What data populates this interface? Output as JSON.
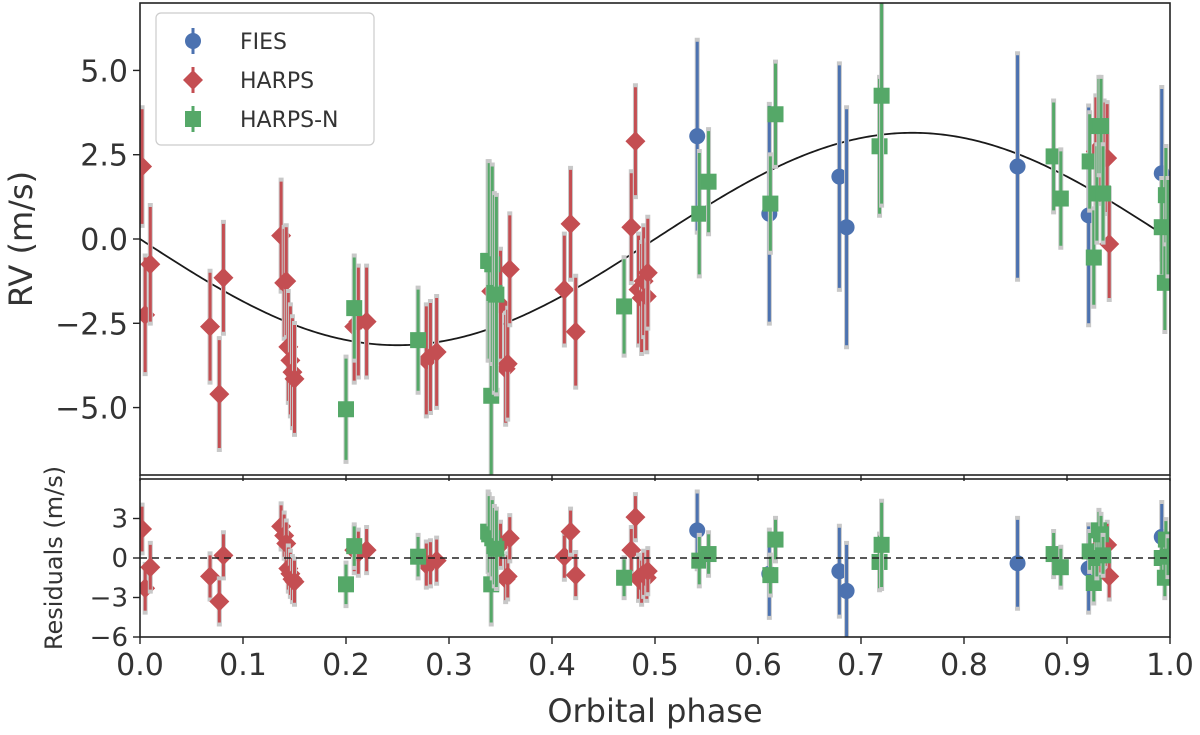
{
  "chart_data": {
    "type": "scatter",
    "xlabel": "Orbital phase",
    "xlim": [
      0.0,
      1.0
    ],
    "x_ticks": [
      "0.0",
      "0.1",
      "0.2",
      "0.3",
      "0.4",
      "0.5",
      "0.6",
      "0.7",
      "0.8",
      "0.9",
      "1.0"
    ],
    "legend_position": "top-left",
    "colors": {
      "FIES": "#4c72b0",
      "HARPS": "#c44e52",
      "HARPS-N": "#55a868",
      "errorbar_gray": "#c8c8c8",
      "model": "#1a1a1a"
    },
    "panels": [
      {
        "name": "rv",
        "ylabel": "RV (m/s)",
        "ylim": [
          -7.0,
          7.0
        ],
        "y_ticks": [
          "−5.0",
          "−2.5",
          "0.0",
          "2.5",
          "5.0"
        ],
        "model": {
          "type": "sine",
          "amplitude": 3.15,
          "phase_of_minimum": 0.25,
          "label": ""
        }
      },
      {
        "name": "residuals",
        "ylabel": "Residuals (m/s)",
        "ylim": [
          -6.0,
          6.0
        ],
        "y_ticks": [
          "−6",
          "−3",
          "0",
          "3"
        ],
        "zero_line": "dashed"
      }
    ],
    "series": [
      {
        "name": "FIES",
        "marker": "circle",
        "x": [
          0.541,
          0.611,
          0.679,
          0.686,
          0.852,
          0.921,
          0.992
        ],
        "y": [
          3.05,
          0.75,
          1.85,
          0.35,
          2.15,
          0.7,
          1.95
        ],
        "yerr": [
          2.8,
          3.2,
          3.3,
          3.5,
          3.3,
          3.2,
          2.5
        ],
        "resid": [
          2.1,
          -1.2,
          -1.0,
          -2.5,
          -0.4,
          -0.8,
          1.6
        ]
      },
      {
        "name": "HARPS",
        "marker": "diamond",
        "x": [
          0.002,
          0.005,
          0.01,
          0.068,
          0.077,
          0.081,
          0.137,
          0.14,
          0.142,
          0.144,
          0.146,
          0.148,
          0.15,
          0.208,
          0.212,
          0.22,
          0.278,
          0.282,
          0.288,
          0.341,
          0.35,
          0.355,
          0.357,
          0.359,
          0.412,
          0.418,
          0.423,
          0.477,
          0.481,
          0.484,
          0.487,
          0.489,
          0.492,
          0.493,
          0.928,
          0.931,
          0.936,
          0.939,
          0.941
        ],
        "y": [
          2.15,
          -2.25,
          -0.75,
          -2.6,
          -4.6,
          -1.15,
          0.1,
          -1.3,
          -1.25,
          -3.2,
          -3.6,
          -3.95,
          -4.15,
          -2.6,
          -2.45,
          -2.45,
          -3.6,
          -3.5,
          -3.35,
          -1.55,
          -1.95,
          -3.85,
          -3.7,
          -0.9,
          -1.5,
          0.45,
          -2.75,
          0.35,
          2.9,
          -1.5,
          -1.75,
          -1.25,
          -1.7,
          -1.0,
          2.6,
          2.7,
          2.45,
          2.4,
          -0.15
        ],
        "yerr": [
          1.7,
          1.7,
          1.7,
          1.6,
          1.6,
          1.6,
          1.6,
          1.6,
          1.6,
          1.6,
          1.6,
          1.6,
          1.6,
          1.6,
          1.6,
          1.6,
          1.6,
          1.6,
          1.6,
          1.6,
          1.6,
          1.6,
          1.6,
          1.6,
          1.6,
          1.6,
          1.6,
          1.6,
          1.6,
          1.6,
          1.6,
          1.6,
          1.6,
          1.6,
          1.6,
          1.6,
          1.6,
          1.6,
          1.6
        ],
        "resid": [
          2.2,
          -2.3,
          -0.7,
          -1.4,
          -3.3,
          0.2,
          2.4,
          1.7,
          1.1,
          -0.8,
          -1.2,
          -1.6,
          -1.8,
          0.6,
          0.4,
          0.6,
          -0.5,
          -0.4,
          -0.2,
          1.5,
          1.0,
          -1.6,
          -1.4,
          1.5,
          0.1,
          2.0,
          -1.3,
          0.6,
          3.1,
          -1.5,
          -1.8,
          -1.2,
          -1.5,
          -1.0,
          0.6,
          0.5,
          0.8,
          1.0,
          -1.4
        ]
      },
      {
        "name": "HARPS-N",
        "marker": "square",
        "x": [
          0.2,
          0.208,
          0.27,
          0.338,
          0.339,
          0.341,
          0.342,
          0.344,
          0.346,
          0.47,
          0.543,
          0.552,
          0.612,
          0.617,
          0.718,
          0.72,
          0.887,
          0.894,
          0.922,
          0.926,
          0.929,
          0.931,
          0.933,
          0.935,
          0.992,
          0.995,
          0.996,
          0.998
        ],
        "y": [
          -5.05,
          -2.05,
          -3.0,
          -0.65,
          -0.65,
          -4.65,
          -0.75,
          -1.6,
          -1.65,
          -2.0,
          0.75,
          1.7,
          1.05,
          3.7,
          2.75,
          4.25,
          2.45,
          1.2,
          2.3,
          -0.55,
          1.35,
          3.35,
          3.35,
          1.35,
          0.35,
          -1.3,
          1.3,
          0.35
        ],
        "yerr": [
          1.5,
          1.5,
          1.5,
          2.9,
          2.9,
          2.9,
          2.9,
          2.9,
          2.9,
          1.4,
          1.8,
          1.5,
          1.4,
          1.5,
          2.0,
          3.2,
          1.6,
          1.4,
          1.4,
          1.4,
          1.4,
          1.4,
          1.4,
          1.4,
          1.4,
          1.4,
          1.4,
          1.4
        ],
        "resid": [
          -2.0,
          0.9,
          0.1,
          2.0,
          1.8,
          -2.0,
          1.5,
          0.9,
          0.7,
          -1.5,
          -0.2,
          0.3,
          -1.3,
          1.4,
          -0.3,
          1.0,
          0.3,
          -0.7,
          0.5,
          -1.9,
          0.0,
          2.1,
          1.8,
          0.2,
          0.0,
          -1.5,
          1.4,
          0.1
        ]
      }
    ]
  }
}
